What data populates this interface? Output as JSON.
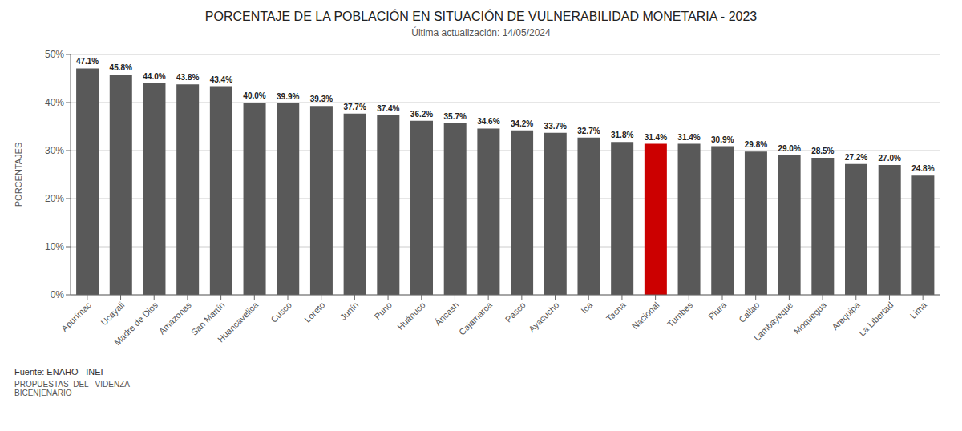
{
  "chart_data": {
    "type": "bar",
    "title": "PORCENTAJE DE LA POBLACIÓN EN SITUACIÓN DE VULNERABILIDAD MONETARIA - 2023",
    "subtitle": "Última actualización: 14/05/2024",
    "categories": [
      "Apurímac",
      "Ucayali",
      "Madre de Dios",
      "Amazonas",
      "San Martín",
      "Huancavelica",
      "Cusco",
      "Loreto",
      "Junín",
      "Puno",
      "Huánuco",
      "Áncash",
      "Cajamarca",
      "Pasco",
      "Ayacucho",
      "Ica",
      "Tacna",
      "Nacional",
      "Tumbes",
      "Piura",
      "Callao",
      "Lambayeque",
      "Moquegua",
      "Arequipa",
      "La Libertad",
      "Lima"
    ],
    "values": [
      47.1,
      45.8,
      44.0,
      43.8,
      43.4,
      40.0,
      39.9,
      39.3,
      37.7,
      37.4,
      36.2,
      35.7,
      34.6,
      34.2,
      33.7,
      32.7,
      31.8,
      31.4,
      31.4,
      30.9,
      29.8,
      29.0,
      28.5,
      27.2,
      27.0,
      24.8
    ],
    "value_labels": [
      "47.1%",
      "45.8%",
      "44.0%",
      "43.8%",
      "43.4%",
      "40.0%",
      "39.9%",
      "39.3%",
      "37.7%",
      "37.4%",
      "36.2%",
      "35.7%",
      "34.6%",
      "34.2%",
      "33.7%",
      "32.7%",
      "31.8%",
      "31.4%",
      "31.4%",
      "30.9%",
      "29.8%",
      "29.0%",
      "28.5%",
      "27.2%",
      "27.0%",
      "24.8%"
    ],
    "colors": [
      "#595959",
      "#595959",
      "#595959",
      "#595959",
      "#595959",
      "#595959",
      "#595959",
      "#595959",
      "#595959",
      "#595959",
      "#595959",
      "#595959",
      "#595959",
      "#595959",
      "#595959",
      "#595959",
      "#595959",
      "#cc0000",
      "#595959",
      "#595959",
      "#595959",
      "#595959",
      "#595959",
      "#595959",
      "#595959",
      "#595959"
    ],
    "ylabel": "PORCENTAJES",
    "ylim": [
      0,
      50
    ],
    "yticks": [
      {
        "value": 0,
        "label": "0%"
      },
      {
        "value": 10,
        "label": "10%"
      },
      {
        "value": 20,
        "label": "20%"
      },
      {
        "value": 30,
        "label": "30%"
      },
      {
        "value": 40,
        "label": "40%"
      },
      {
        "value": 50,
        "label": "50%"
      }
    ],
    "grid": true,
    "data_labels": true,
    "annotations": [
      "Fuente: ENAHO - INEI",
      "PROPUESTAS  DEL   VIDENZA",
      "BICEN|ENARIO"
    ]
  }
}
